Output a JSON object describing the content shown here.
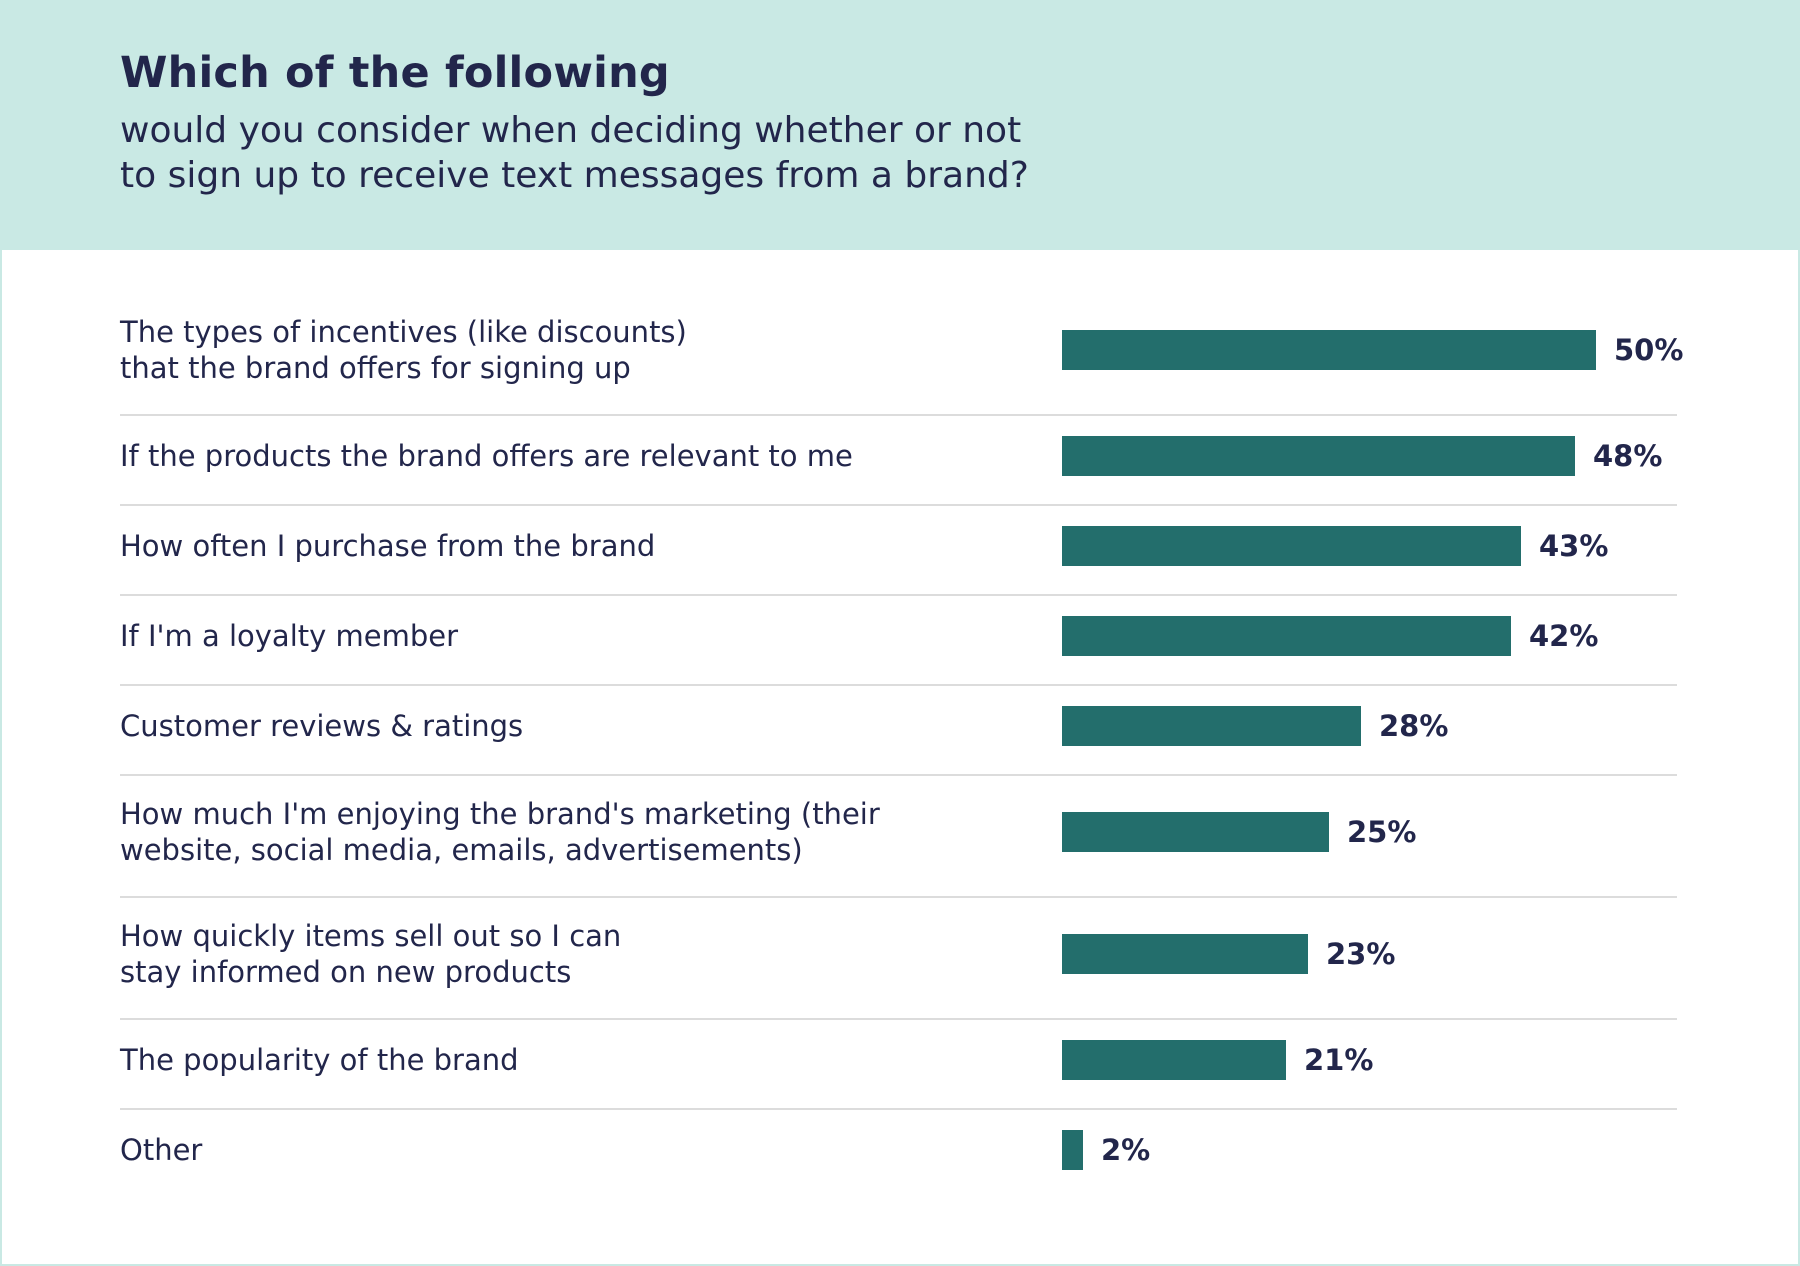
{
  "header": {
    "title": "Which of the following",
    "subtitle_lines": [
      "would you consider when deciding whether or not",
      "to sign up to receive text messages from a brand?"
    ]
  },
  "colors": {
    "header_bg": "#c9e9e4",
    "bar": "#236e6c",
    "text": "#22264b",
    "divider": "#dcdcdc"
  },
  "chart_data": {
    "type": "bar",
    "orientation": "horizontal",
    "title": "Which of the following would you consider when deciding whether or not to sign up to receive text messages from a brand?",
    "xlabel": "",
    "ylabel": "",
    "xlim": [
      0,
      50
    ],
    "unit": "%",
    "grid": false,
    "legend": "none",
    "categories": [
      [
        "The types of incentives (like discounts)",
        "that the brand offers for signing up"
      ],
      [
        "If the products the brand offers are relevant to me"
      ],
      [
        "How often I purchase  from the brand"
      ],
      [
        "If I'm a loyalty member"
      ],
      [
        "Customer reviews & ratings"
      ],
      [
        "How much I'm enjoying the brand's marketing (their",
        "website, social media, emails, advertisements)"
      ],
      [
        "How quickly items sell out so I can",
        "stay informed on new products"
      ],
      [
        "The popularity of the brand"
      ],
      [
        "Other"
      ]
    ],
    "values": [
      50,
      48,
      43,
      42,
      28,
      25,
      23,
      21,
      2
    ],
    "value_labels": [
      "50%",
      "48%",
      "43%",
      "42%",
      "28%",
      "25%",
      "23%",
      "21%",
      "2%"
    ]
  }
}
